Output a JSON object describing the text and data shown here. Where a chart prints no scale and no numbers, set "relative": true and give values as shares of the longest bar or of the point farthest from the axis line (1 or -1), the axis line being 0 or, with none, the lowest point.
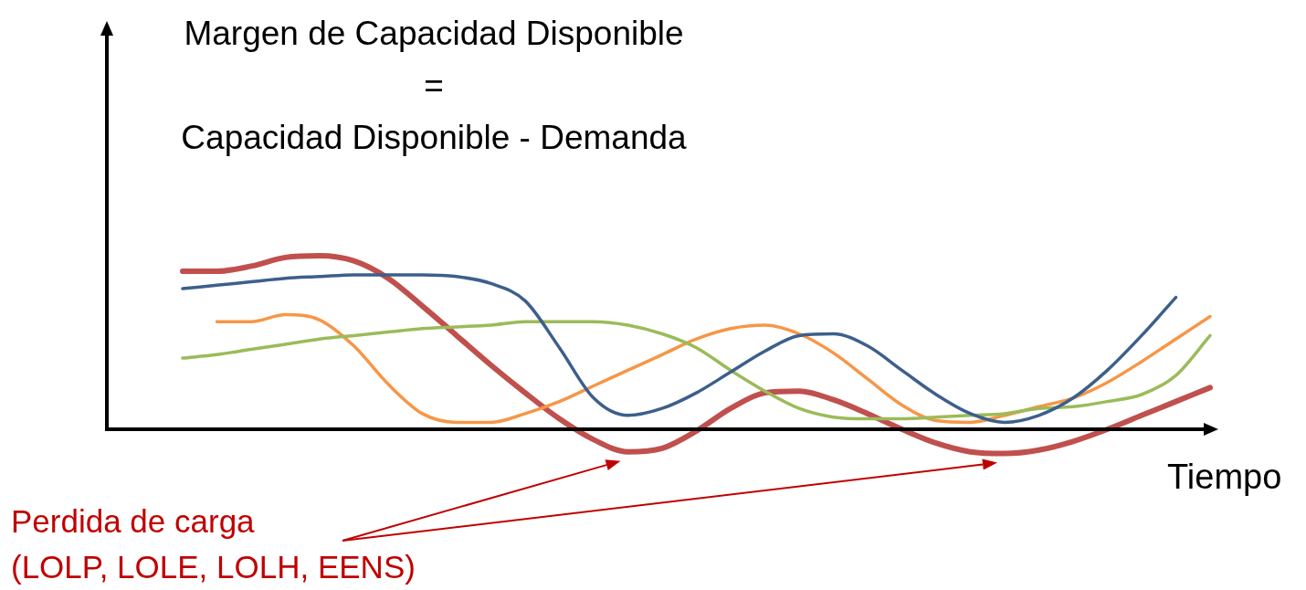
{
  "chart_data": {
    "type": "line",
    "relative": true,
    "title": "Margen de Capacidad Disponible\n=\nCapacidad Disponible - Demanda",
    "xlabel": "Tiempo",
    "annotations": [
      "Perdida de carga\n(LOLP, LOLE, LOLH, EENS)"
    ],
    "legend": false,
    "marker": "none",
    "categories": [
      null,
      null,
      null,
      null,
      null,
      null,
      null,
      null,
      null,
      null,
      null,
      null,
      null,
      null,
      null,
      null,
      null,
      null,
      null,
      null,
      null,
      null,
      null,
      null,
      null,
      null,
      null,
      null,
      null,
      null,
      null
    ],
    "series": [
      {
        "color": "#3d5f8c",
        "values": [
          0.81,
          0.83,
          0.85,
          0.87,
          0.88,
          0.89,
          0.89,
          0.89,
          0.88,
          0.84,
          0.74,
          0.47,
          0.18,
          0.08,
          0.12,
          0.21,
          0.33,
          0.45,
          0.54,
          0.55,
          0.48,
          0.34,
          0.2,
          0.09,
          0.04,
          0.08,
          0.18,
          0.34,
          0.54,
          0.76,
          null
        ]
      },
      {
        "color": "#9bbb59",
        "values": [
          0.41,
          0.43,
          0.46,
          0.49,
          0.52,
          0.54,
          0.56,
          0.58,
          0.59,
          0.6,
          0.62,
          0.62,
          0.62,
          0.6,
          0.55,
          0.47,
          0.34,
          0.22,
          0.12,
          0.07,
          0.06,
          0.06,
          0.07,
          0.08,
          0.09,
          0.12,
          0.13,
          0.16,
          0.2,
          0.31,
          0.54
        ]
      },
      {
        "color": "#f79646",
        "values": [
          null,
          0.62,
          0.62,
          0.66,
          0.63,
          0.48,
          0.26,
          0.09,
          0.04,
          0.04,
          0.09,
          0.16,
          0.25,
          0.34,
          0.43,
          0.52,
          0.58,
          0.6,
          0.55,
          0.44,
          0.29,
          0.14,
          0.05,
          0.04,
          0.08,
          0.13,
          0.18,
          0.27,
          0.39,
          0.52,
          0.65
        ]
      },
      {
        "color": "#c0504d",
        "values": [
          0.91,
          0.91,
          0.94,
          0.99,
          1,
          0.97,
          0.87,
          0.71,
          0.54,
          0.37,
          0.21,
          0.06,
          -0.06,
          -0.13,
          -0.11,
          -0.01,
          0.12,
          0.21,
          0.22,
          0.17,
          0.09,
          0,
          -0.08,
          -0.13,
          -0.14,
          -0.12,
          -0.07,
          0,
          0.08,
          0.16,
          0.24
        ]
      }
    ]
  }
}
